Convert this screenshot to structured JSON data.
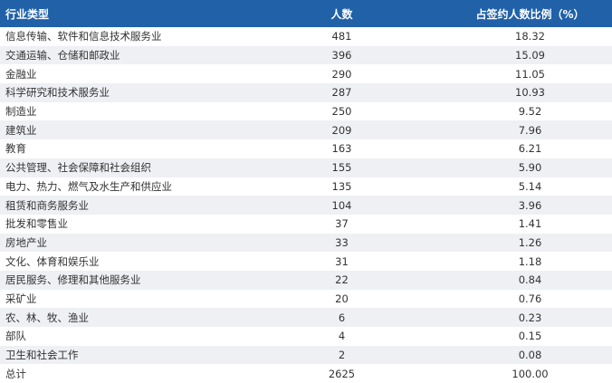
{
  "table": {
    "header": [
      "行业类型",
      "人数",
      "占签约人数比例（%）"
    ],
    "rows": [
      [
        "信息传输、软件和信息技术服务业",
        "481",
        "18.32"
      ],
      [
        "交通运输、仓储和邮政业",
        "396",
        "15.09"
      ],
      [
        "金融业",
        "290",
        "11.05"
      ],
      [
        "科学研究和技术服务业",
        "287",
        "10.93"
      ],
      [
        "制造业",
        "250",
        "9.52"
      ],
      [
        "建筑业",
        "209",
        "7.96"
      ],
      [
        "教育",
        "163",
        "6.21"
      ],
      [
        "公共管理、社会保障和社会组织",
        "155",
        "5.90"
      ],
      [
        "电力、热力、燃气及水生产和供应业",
        "135",
        "5.14"
      ],
      [
        "租赁和商务服务业",
        "104",
        "3.96"
      ],
      [
        "批发和零售业",
        "37",
        "1.41"
      ],
      [
        "房地产业",
        "33",
        "1.26"
      ],
      [
        "文化、体育和娱乐业",
        "31",
        "1.18"
      ],
      [
        "居民服务、修理和其他服务业",
        "22",
        "0.84"
      ],
      [
        "采矿业",
        "20",
        "0.76"
      ],
      [
        "农、林、牧、渔业",
        "6",
        "0.23"
      ],
      [
        "部队",
        "4",
        "0.15"
      ],
      [
        "卫生和社会工作",
        "2",
        "0.08"
      ],
      [
        "总计",
        "2625",
        "100.00"
      ]
    ]
  }
}
